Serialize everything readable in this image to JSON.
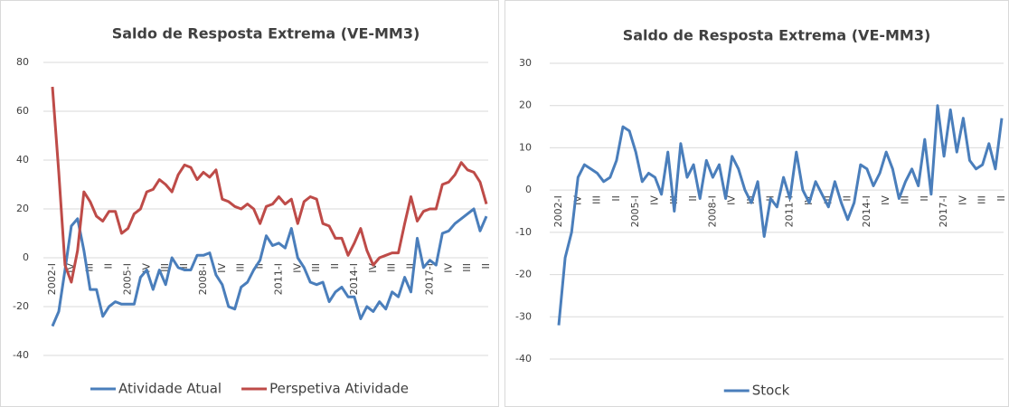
{
  "chart_data": [
    {
      "type": "line",
      "title": "Saldo de Resposta Extrema (VE-MM3)",
      "categories": [
        "2002-I",
        null,
        null,
        "IV",
        null,
        null,
        "III",
        null,
        null,
        "II",
        null,
        null,
        "2005-I",
        null,
        null,
        "IV",
        null,
        null,
        "III",
        null,
        null,
        "II",
        null,
        null,
        "2008-I",
        null,
        null,
        "IV",
        null,
        null,
        "III",
        null,
        null,
        "II",
        null,
        null,
        "2011-I",
        null,
        null,
        "IV",
        null,
        null,
        "III",
        null,
        null,
        "II",
        null,
        null,
        "2014-I",
        null,
        null,
        "IV",
        null,
        null,
        "III",
        null,
        null,
        "II",
        null,
        null,
        "2017-I",
        null,
        null,
        "IV",
        null,
        null,
        "III",
        null,
        null,
        "II"
      ],
      "series": [
        {
          "name": "Atividade Atual",
          "color": "#4a7ebb",
          "values": [
            -28,
            -22,
            -5,
            13,
            16,
            3,
            -13,
            -13,
            -24,
            -20,
            -18,
            -19,
            -19,
            -19,
            -8,
            -5,
            -13,
            -5,
            -11,
            0,
            -4,
            -5,
            -5,
            1,
            1,
            2,
            -7,
            -11,
            -20,
            -21,
            -12,
            -10,
            -5,
            -1,
            9,
            5,
            6,
            4,
            12,
            0,
            -4,
            -10,
            -11,
            -10,
            -18,
            -14,
            -12,
            -16,
            -16,
            -25,
            -20,
            -22,
            -18,
            -21,
            -14,
            -16,
            -8,
            -14,
            8,
            -4,
            -1,
            -3,
            10,
            11,
            14,
            16,
            18,
            20,
            11,
            17
          ]
        },
        {
          "name": "Perspetiva Atividade",
          "color": "#be4b48",
          "values": [
            70,
            35,
            -3,
            -10,
            3,
            27,
            23,
            17,
            15,
            19,
            19,
            10,
            12,
            18,
            20,
            27,
            28,
            32,
            30,
            27,
            34,
            38,
            37,
            32,
            35,
            33,
            36,
            24,
            23,
            21,
            20,
            22,
            20,
            14,
            21,
            22,
            25,
            22,
            24,
            14,
            23,
            25,
            24,
            14,
            13,
            8,
            8,
            1,
            6,
            12,
            3,
            -3,
            0,
            1,
            2,
            2,
            14,
            25,
            15,
            19,
            20,
            20,
            30,
            31,
            34,
            39,
            36,
            35,
            31,
            22
          ]
        }
      ],
      "ylim": [
        -40,
        80
      ],
      "yticks": [
        -40,
        -20,
        0,
        20,
        40,
        60,
        80
      ],
      "grid": true,
      "legend": "bottom"
    },
    {
      "type": "line",
      "title": "Saldo de Resposta Extrema (VE-MM3)",
      "categories": [
        "2002-I",
        null,
        null,
        "IV",
        null,
        null,
        "III",
        null,
        null,
        "II",
        null,
        null,
        "2005-I",
        null,
        null,
        "IV",
        null,
        null,
        "III",
        null,
        null,
        "II",
        null,
        null,
        "2008-I",
        null,
        null,
        "IV",
        null,
        null,
        "III",
        null,
        null,
        "II",
        null,
        null,
        "2011-I",
        null,
        null,
        "IV",
        null,
        null,
        "III",
        null,
        null,
        "II",
        null,
        null,
        "2014-I",
        null,
        null,
        "IV",
        null,
        null,
        "III",
        null,
        null,
        "II",
        null,
        null,
        "2017-I",
        null,
        null,
        "IV",
        null,
        null,
        "III",
        null,
        null,
        "II"
      ],
      "series": [
        {
          "name": "Stock",
          "color": "#4a7ebb",
          "values": [
            -32,
            -16,
            -10,
            3,
            6,
            5,
            4,
            2,
            3,
            7,
            15,
            14,
            9,
            2,
            4,
            3,
            -1,
            9,
            -5,
            11,
            3,
            6,
            -2,
            7,
            3,
            6,
            -2,
            8,
            5,
            0,
            -3,
            2,
            -11,
            -2,
            -4,
            3,
            -2,
            9,
            0,
            -3,
            2,
            -1,
            -4,
            2,
            -3,
            -7,
            -3,
            6,
            5,
            1,
            4,
            9,
            5,
            -2,
            2,
            5,
            1,
            12,
            -1,
            20,
            8,
            19,
            9,
            17,
            7,
            5,
            6,
            11,
            5,
            17
          ]
        }
      ],
      "ylim": [
        -40,
        30
      ],
      "yticks": [
        -40,
        -30,
        -20,
        -10,
        0,
        10,
        20,
        30
      ],
      "grid": true,
      "legend": "bottom"
    }
  ]
}
